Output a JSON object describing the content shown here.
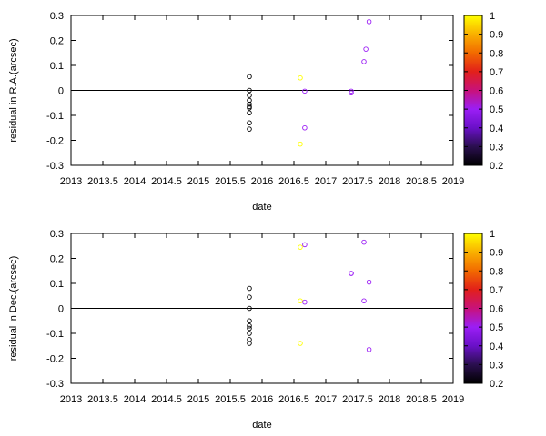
{
  "chart_data": [
    {
      "type": "scatter",
      "xlabel": "date",
      "ylabel": "residual in R.A.(arcsec)",
      "xlim": [
        2013,
        2019
      ],
      "ylim": [
        -0.3,
        0.3
      ],
      "xticks": [
        "2013",
        "2013.5",
        "2014",
        "2014.5",
        "2015",
        "2015.5",
        "2016",
        "2016.5",
        "2017",
        "2017.5",
        "2018",
        "2018.5",
        "2019"
      ],
      "xtick_values": [
        2013,
        2013.5,
        2014,
        2014.5,
        2015,
        2015.5,
        2016,
        2016.5,
        2017,
        2017.5,
        2018,
        2018.5,
        2019
      ],
      "yticks": [
        "-0.3",
        "-0.2",
        "-0.1",
        "0",
        "0.1",
        "0.2",
        "0.3"
      ],
      "ytick_values": [
        -0.3,
        -0.2,
        -0.1,
        0,
        0.1,
        0.2,
        0.3
      ],
      "zero_line": 0,
      "colorbar": {
        "range": [
          0.2,
          1
        ],
        "ticks": [
          "1",
          "0.9",
          "0.8",
          "0.7",
          "0.6",
          "0.5",
          "0.4",
          "0.3",
          "0.2"
        ],
        "tick_values": [
          1,
          0.9,
          0.8,
          0.7,
          0.6,
          0.5,
          0.4,
          0.3,
          0.2
        ]
      },
      "points": [
        {
          "x": 2015.8,
          "y": 0.055,
          "c": 0.2
        },
        {
          "x": 2015.8,
          "y": 0.0,
          "c": 0.2
        },
        {
          "x": 2015.8,
          "y": -0.02,
          "c": 0.2
        },
        {
          "x": 2015.8,
          "y": -0.04,
          "c": 0.2
        },
        {
          "x": 2015.8,
          "y": -0.055,
          "c": 0.2
        },
        {
          "x": 2015.8,
          "y": -0.065,
          "c": 0.2
        },
        {
          "x": 2015.8,
          "y": -0.07,
          "c": 0.2
        },
        {
          "x": 2015.8,
          "y": -0.09,
          "c": 0.2
        },
        {
          "x": 2015.8,
          "y": -0.13,
          "c": 0.2
        },
        {
          "x": 2015.8,
          "y": -0.155,
          "c": 0.2
        },
        {
          "x": 2016.6,
          "y": 0.05,
          "c": 1.0
        },
        {
          "x": 2016.6,
          "y": -0.215,
          "c": 1.0
        },
        {
          "x": 2016.67,
          "y": -0.003,
          "c": 0.5
        },
        {
          "x": 2016.67,
          "y": -0.15,
          "c": 0.5
        },
        {
          "x": 2017.4,
          "y": -0.003,
          "c": 0.5
        },
        {
          "x": 2017.4,
          "y": -0.01,
          "c": 0.5
        },
        {
          "x": 2017.6,
          "y": 0.115,
          "c": 0.5
        },
        {
          "x": 2017.63,
          "y": 0.165,
          "c": 0.5
        },
        {
          "x": 2017.68,
          "y": 0.275,
          "c": 0.5
        }
      ]
    },
    {
      "type": "scatter",
      "xlabel": "date",
      "ylabel": "residual in Dec.(arcsec)",
      "xlim": [
        2013,
        2019
      ],
      "ylim": [
        -0.3,
        0.3
      ],
      "xticks": [
        "2013",
        "2013.5",
        "2014",
        "2014.5",
        "2015",
        "2015.5",
        "2016",
        "2016.5",
        "2017",
        "2017.5",
        "2018",
        "2018.5",
        "2019"
      ],
      "xtick_values": [
        2013,
        2013.5,
        2014,
        2014.5,
        2015,
        2015.5,
        2016,
        2016.5,
        2017,
        2017.5,
        2018,
        2018.5,
        2019
      ],
      "yticks": [
        "-0.3",
        "-0.2",
        "-0.1",
        "0",
        "0.1",
        "0.2",
        "0.3"
      ],
      "ytick_values": [
        -0.3,
        -0.2,
        -0.1,
        0,
        0.1,
        0.2,
        0.3
      ],
      "zero_line": 0,
      "colorbar": {
        "range": [
          0.2,
          1
        ],
        "ticks": [
          "1",
          "0.9",
          "0.8",
          "0.7",
          "0.6",
          "0.5",
          "0.4",
          "0.3",
          "0.2"
        ],
        "tick_values": [
          1,
          0.9,
          0.8,
          0.7,
          0.6,
          0.5,
          0.4,
          0.3,
          0.2
        ]
      },
      "points": [
        {
          "x": 2015.8,
          "y": 0.08,
          "c": 0.2
        },
        {
          "x": 2015.8,
          "y": 0.045,
          "c": 0.2
        },
        {
          "x": 2015.8,
          "y": 0.0,
          "c": 0.2
        },
        {
          "x": 2015.8,
          "y": -0.05,
          "c": 0.2
        },
        {
          "x": 2015.8,
          "y": -0.07,
          "c": 0.2
        },
        {
          "x": 2015.8,
          "y": -0.08,
          "c": 0.2
        },
        {
          "x": 2015.8,
          "y": -0.1,
          "c": 0.2
        },
        {
          "x": 2015.8,
          "y": -0.125,
          "c": 0.2
        },
        {
          "x": 2015.8,
          "y": -0.14,
          "c": 0.2
        },
        {
          "x": 2016.6,
          "y": 0.245,
          "c": 1.0
        },
        {
          "x": 2016.6,
          "y": 0.03,
          "c": 1.0
        },
        {
          "x": 2016.6,
          "y": -0.14,
          "c": 1.0
        },
        {
          "x": 2016.67,
          "y": 0.255,
          "c": 0.5
        },
        {
          "x": 2016.67,
          "y": 0.025,
          "c": 0.5
        },
        {
          "x": 2017.4,
          "y": 0.14,
          "c": 0.5
        },
        {
          "x": 2017.4,
          "y": 0.14,
          "c": 0.5
        },
        {
          "x": 2017.6,
          "y": 0.265,
          "c": 0.5
        },
        {
          "x": 2017.6,
          "y": 0.03,
          "c": 0.5
        },
        {
          "x": 2017.68,
          "y": 0.105,
          "c": 0.5
        },
        {
          "x": 2017.68,
          "y": -0.165,
          "c": 0.5
        }
      ]
    }
  ]
}
